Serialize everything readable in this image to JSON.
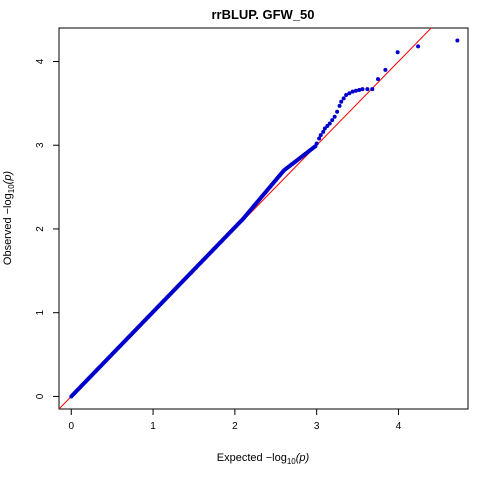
{
  "chart_data": {
    "type": "scatter",
    "title": "rrBLUP. GFW_50",
    "xlabel": {
      "prefix": "Expected  −log",
      "subscript": "10",
      "suffix": "(p)"
    },
    "ylabel": {
      "prefix": "Observed  −log",
      "subscript": "10",
      "suffix": "(p)"
    },
    "xlim": [
      -0.15,
      4.85
    ],
    "ylim": [
      -0.15,
      4.4
    ],
    "x_ticks": [
      0,
      1,
      2,
      3,
      4
    ],
    "y_ticks": [
      0,
      1,
      2,
      3,
      4
    ],
    "grid": false,
    "reference_line": {
      "slope": 1,
      "intercept": 0,
      "color": "#ff0000"
    },
    "point_color": "#0000cd",
    "series": [
      {
        "points": {
          "bulk_segments": [
            {
              "x": [
                0.0,
                2.1
              ],
              "y": [
                0.0,
                2.12
              ]
            },
            {
              "x": [
                2.1,
                2.6
              ],
              "y": [
                2.12,
                2.7
              ]
            },
            {
              "x": [
                2.6,
                3.0
              ],
              "y": [
                2.7,
                3.0
              ]
            }
          ],
          "tail": [
            [
              3.0,
              3.02
            ],
            [
              3.03,
              3.08
            ],
            [
              3.05,
              3.12
            ],
            [
              3.08,
              3.16
            ],
            [
              3.1,
              3.2
            ],
            [
              3.13,
              3.23
            ],
            [
              3.16,
              3.26
            ],
            [
              3.19,
              3.3
            ],
            [
              3.22,
              3.34
            ],
            [
              3.25,
              3.4
            ],
            [
              3.28,
              3.47
            ],
            [
              3.3,
              3.52
            ],
            [
              3.33,
              3.56
            ],
            [
              3.36,
              3.6
            ],
            [
              3.4,
              3.62
            ],
            [
              3.44,
              3.64
            ],
            [
              3.48,
              3.65
            ],
            [
              3.52,
              3.66
            ],
            [
              3.56,
              3.67
            ],
            [
              3.62,
              3.67
            ],
            [
              3.68,
              3.67
            ],
            [
              3.75,
              3.79
            ],
            [
              3.84,
              3.9
            ],
            [
              3.99,
              4.11
            ],
            [
              4.24,
              4.18
            ],
            [
              4.72,
              4.25
            ]
          ]
        }
      }
    ]
  }
}
